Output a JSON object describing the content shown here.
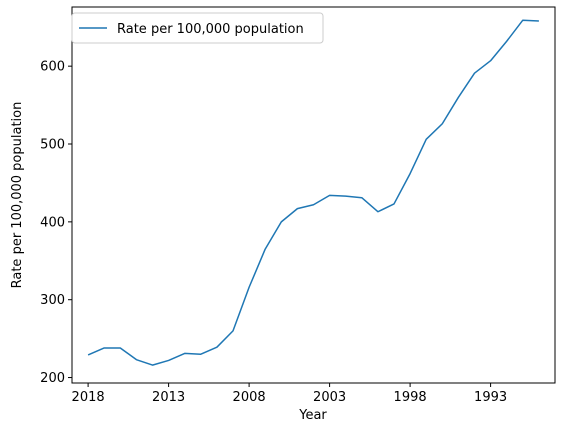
{
  "chart_data": {
    "type": "line",
    "xlabel": "Year",
    "ylabel": "Rate per 100,000 population",
    "x_reversed": true,
    "xlim": [
      2019,
      1989
    ],
    "ylim": [
      193,
      676
    ],
    "x_ticks": [
      2018,
      2013,
      2008,
      2003,
      1998,
      1993
    ],
    "y_ticks": [
      200,
      300,
      400,
      500,
      600
    ],
    "grid": false,
    "legend": "top-left",
    "series": [
      {
        "name": "Rate per 100,000 population",
        "color": "#1f77b4",
        "x": [
          2018,
          2017,
          2016,
          2015,
          2014,
          2013,
          2012,
          2011,
          2010,
          2009,
          2008,
          2007,
          2006,
          2005,
          2004,
          2003,
          2002,
          2001,
          2000,
          1999,
          1998,
          1997,
          1996,
          1995,
          1994,
          1993,
          1992,
          1991,
          1990
        ],
        "values": [
          229,
          238,
          238,
          223,
          216,
          222,
          231,
          230,
          239,
          260,
          316,
          365,
          400,
          417,
          422,
          434,
          433,
          431,
          413,
          423,
          462,
          506,
          526,
          560,
          591,
          607,
          632,
          659,
          658
        ]
      }
    ]
  }
}
